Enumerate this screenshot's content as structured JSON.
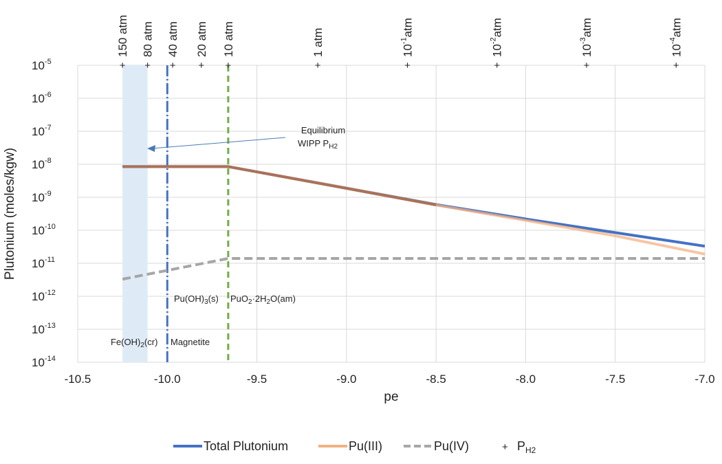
{
  "chart_data": {
    "type": "line",
    "title": "",
    "xlabel": "pe",
    "ylabel": "Plutonium (moles/kgw)",
    "xlim": [
      -10.5,
      -7.0
    ],
    "ylim_log10": [
      -14,
      -5
    ],
    "x_ticks": [
      "-10.5",
      "-10.0",
      "-9.5",
      "-9.0",
      "-8.5",
      "-8.0",
      "-7.5",
      "-7.0"
    ],
    "y_ticks": [
      {
        "base": "10",
        "exp": "-5"
      },
      {
        "base": "10",
        "exp": "-6"
      },
      {
        "base": "10",
        "exp": "-7"
      },
      {
        "base": "10",
        "exp": "-8"
      },
      {
        "base": "10",
        "exp": "-9"
      },
      {
        "base": "10",
        "exp": "-10"
      },
      {
        "base": "10",
        "exp": "-11"
      },
      {
        "base": "10",
        "exp": "-12"
      },
      {
        "base": "10",
        "exp": "-13"
      },
      {
        "base": "10",
        "exp": "-14"
      }
    ],
    "grid": true,
    "legend_position": "bottom",
    "series": [
      {
        "name": "Total Plutonium",
        "color": "#4472c4",
        "style": "solid",
        "x": [
          -10.25,
          -9.66,
          -9.0,
          -8.5,
          -8.0,
          -7.5,
          -7.0
        ],
        "y": [
          8.5e-09,
          8.5e-09,
          1.9e-09,
          6e-10,
          2.2e-10,
          8.5e-11,
          3.3e-11
        ]
      },
      {
        "name": "Pu(III)",
        "color": "#f4b183",
        "style": "solid",
        "x": [
          -10.25,
          -9.66,
          -9.0,
          -8.5,
          -8.0,
          -7.5,
          -7.0
        ],
        "y": [
          8.5e-09,
          8.5e-09,
          1.9e-09,
          5.8e-10,
          2e-10,
          6.8e-11,
          1.9e-11
        ]
      },
      {
        "name": "Pu(IV)",
        "color": "#a6a6a6",
        "style": "dashed",
        "x": [
          -10.25,
          -9.66,
          -7.0
        ],
        "y": [
          3.3e-12,
          1.4e-11,
          1.4e-11
        ]
      }
    ],
    "ph2_marker_legend": {
      "symbol": "+",
      "label": "P",
      "sub": "H2"
    },
    "ph2_markers": [
      {
        "pe": -10.25,
        "label": "150 atm"
      },
      {
        "pe": -10.11,
        "label": "80 atm"
      },
      {
        "pe": -9.97,
        "label": "40 atm"
      },
      {
        "pe": -9.81,
        "label": "20 atm"
      },
      {
        "pe": -9.66,
        "label": "10 atm"
      },
      {
        "pe": -9.16,
        "label": "1 atm"
      },
      {
        "pe": -8.66,
        "label": "10",
        "exp": "-1",
        "unit": "atm"
      },
      {
        "pe": -8.16,
        "label": "10",
        "exp": "-2",
        "unit": "atm"
      },
      {
        "pe": -7.66,
        "label": "10",
        "exp": "-3",
        "unit": "atm"
      },
      {
        "pe": -7.16,
        "label": "10",
        "exp": "-4",
        "unit": "atm"
      }
    ],
    "shaded_region": {
      "x": [
        -10.25,
        -10.11
      ],
      "color": "#deebf7"
    },
    "vertical_lines": [
      {
        "pe": -10.0,
        "color": "#4472c4",
        "style": "dash-dot",
        "left_label": "Fe(OH)2(cr)",
        "right_label": "Magnetite"
      },
      {
        "pe": -9.66,
        "color": "#70ad47",
        "style": "dashed",
        "left_label": "Pu(OH)3(s)",
        "right_label": "PuO2·2H2O(am)"
      }
    ],
    "annotations": {
      "arrow_label_line1": "Equilibrium",
      "arrow_label_line2": "WIPP P",
      "arrow_label_sub": "H2",
      "fe_label": "Fe(OH)",
      "fe_sub": "2",
      "fe_tail": "(cr)",
      "magnetite": "Magnetite",
      "puoh_label": "Pu(OH)",
      "puoh_sub": "3",
      "puoh_tail": "(s)",
      "puo2_label": "PuO",
      "puo2_sub": "2",
      "puo2_mid": "·2H",
      "puo2_sub2": "2",
      "puo2_tail": "O(am)"
    }
  }
}
